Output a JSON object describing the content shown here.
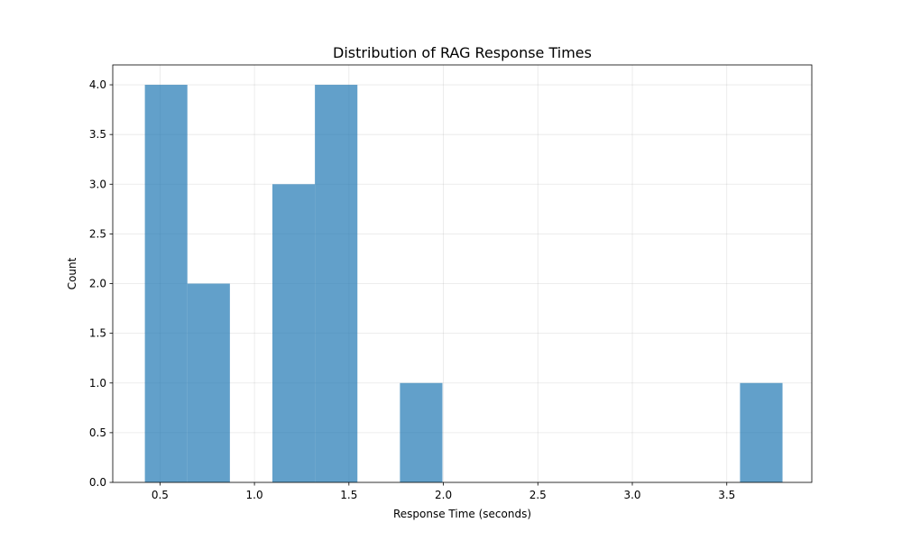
{
  "chart_data": {
    "type": "bar",
    "subtype": "histogram",
    "title": "Distribution of RAG Response Times",
    "xlabel": "Response Time (seconds)",
    "ylabel": "Count",
    "xlim": [
      0.25,
      3.95
    ],
    "ylim": [
      0,
      4.2
    ],
    "xticks": [
      0.5,
      1.0,
      1.5,
      2.0,
      2.5,
      3.0,
      3.5
    ],
    "xtick_labels": [
      "0.5",
      "1.0",
      "1.5",
      "2.0",
      "2.5",
      "3.0",
      "3.5"
    ],
    "yticks": [
      0,
      0.5,
      1.0,
      1.5,
      2.0,
      2.5,
      3.0,
      3.5,
      4.0
    ],
    "ytick_labels": [
      "0.0",
      "0.5",
      "1.0",
      "1.5",
      "2.0",
      "2.5",
      "3.0",
      "3.5",
      "4.0"
    ],
    "bins": [
      {
        "x0": 0.42,
        "x1": 0.645,
        "count": 4
      },
      {
        "x0": 0.645,
        "x1": 0.87,
        "count": 2
      },
      {
        "x0": 0.87,
        "x1": 1.095,
        "count": 0
      },
      {
        "x0": 1.095,
        "x1": 1.32,
        "count": 3
      },
      {
        "x0": 1.32,
        "x1": 1.545,
        "count": 4
      },
      {
        "x0": 1.545,
        "x1": 1.77,
        "count": 0
      },
      {
        "x0": 1.77,
        "x1": 1.995,
        "count": 1
      },
      {
        "x0": 1.995,
        "x1": 2.22,
        "count": 0
      },
      {
        "x0": 2.22,
        "x1": 2.445,
        "count": 0
      },
      {
        "x0": 2.445,
        "x1": 2.67,
        "count": 0
      },
      {
        "x0": 2.67,
        "x1": 2.895,
        "count": 0
      },
      {
        "x0": 2.895,
        "x1": 3.12,
        "count": 0
      },
      {
        "x0": 3.12,
        "x1": 3.345,
        "count": 0
      },
      {
        "x0": 3.345,
        "x1": 3.57,
        "count": 0
      },
      {
        "x0": 3.57,
        "x1": 3.795,
        "count": 1
      }
    ],
    "bar_color": "#1f77b4",
    "bar_alpha": 0.7,
    "grid": true
  }
}
